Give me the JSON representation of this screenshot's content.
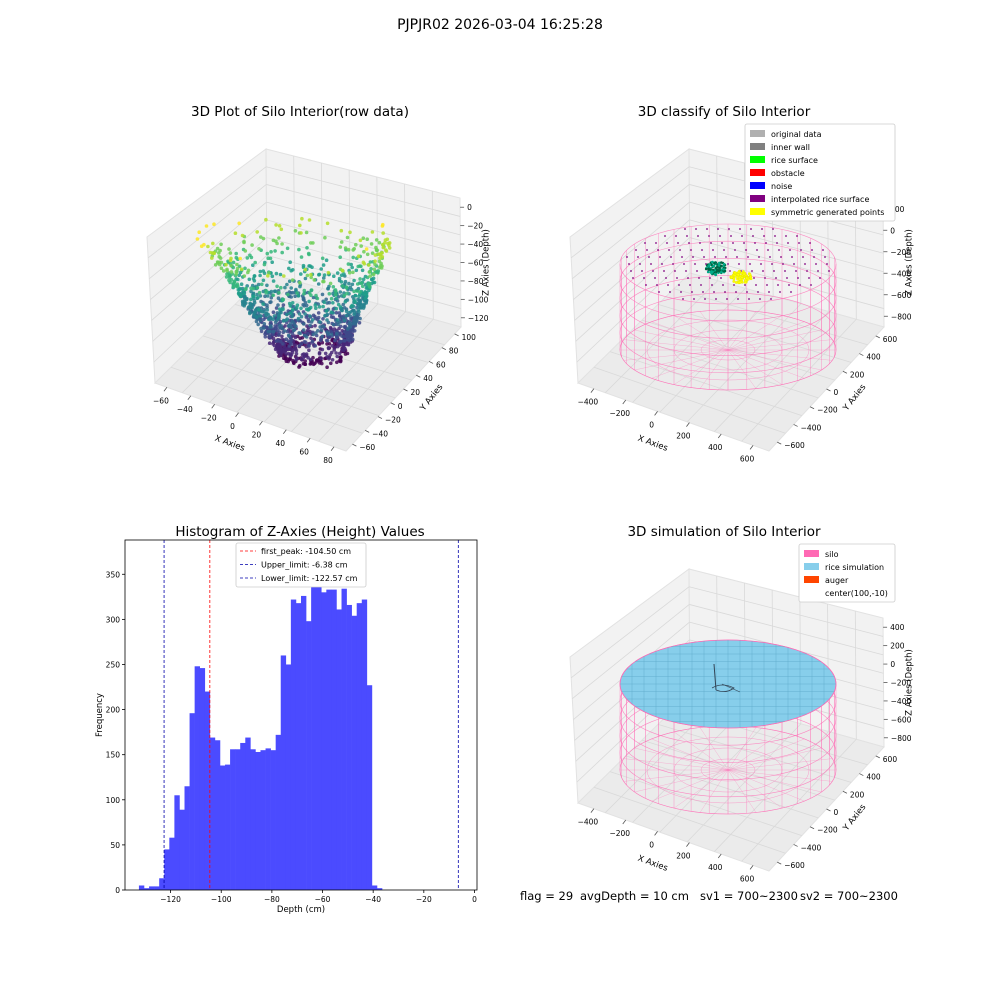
{
  "suptitle": "PJPJR02 2026-03-04 16:25:28",
  "footer": {
    "flag": "flag = 29",
    "avg_depth": "avgDepth = 10 cm",
    "sv1": "sv1 = 700~2300",
    "sv2": "sv2 = 700~2300"
  },
  "colors": {
    "histogram_bar": "#4b4bff",
    "first_peak_line": "#ff0000",
    "limit_lines": "#0000aa",
    "silo": "#ff69b4",
    "rice_simulation": "#87ceeb",
    "auger": "#ff4500",
    "original_data": "#b0b0b0",
    "inner_wall": "#808080",
    "rice_surface": "#00ff00",
    "obstacle": "#ff0000",
    "noise": "#0000ff",
    "interpolated_rice_surface": "#800080",
    "symmetric_generated_points": "#ffff00"
  },
  "chart_data": [
    {
      "type": "scatter",
      "title": "3D Plot of Silo Interior(row data)",
      "xlabel": "X Axies",
      "ylabel": "Y Axies",
      "zlabel": "Z Axies (Depth)",
      "x_ticks": [
        "−60",
        "−40",
        "−20",
        "0",
        "20",
        "40",
        "60",
        "80"
      ],
      "y_ticks": [
        "−60",
        "−40",
        "−20",
        "0",
        "20",
        "40",
        "60",
        "80",
        "100"
      ],
      "z_ticks": [
        "0",
        "−20",
        "−40",
        "−60",
        "−80",
        "−100",
        "−120"
      ],
      "xlim": [
        -70,
        100
      ],
      "ylim": [
        -60,
        100
      ],
      "zlim": [
        -130,
        0
      ],
      "colormap": "viridis"
    },
    {
      "type": "scatter",
      "title": "3D classify of Silo Interior",
      "xlabel": "X Axies",
      "ylabel": "Y Axies",
      "zlabel": "Z Axies (Depth)",
      "x_ticks": [
        "−400",
        "−200",
        "0",
        "200",
        "400",
        "600"
      ],
      "y_ticks": [
        "−600",
        "−400",
        "−200",
        "0",
        "200",
        "400",
        "600"
      ],
      "z_ticks": [
        "200",
        "0",
        "−200",
        "−400",
        "−600",
        "−800"
      ],
      "legend_position": "top-right",
      "legend": [
        {
          "label": "original data",
          "color": "#b0b0b0"
        },
        {
          "label": "inner wall",
          "color": "#808080"
        },
        {
          "label": "rice surface",
          "color": "#00ff00"
        },
        {
          "label": "obstacle",
          "color": "#ff0000"
        },
        {
          "label": "noise",
          "color": "#0000ff"
        },
        {
          "label": "interpolated rice surface",
          "color": "#800080"
        },
        {
          "label": "symmetric generated points",
          "color": "#ffff00"
        }
      ]
    },
    {
      "type": "bar",
      "title": "Histogram of Z-Axies (Height) Values",
      "xlabel": "Depth (cm)",
      "ylabel": "Frequency",
      "xlim": [
        -138,
        1
      ],
      "ylim": [
        0,
        388
      ],
      "x_ticks": [
        -120,
        -100,
        -80,
        -60,
        -40,
        -20,
        0
      ],
      "y_ticks": [
        0,
        50,
        100,
        150,
        200,
        250,
        300,
        350
      ],
      "bin_start": -132.5,
      "bin_width": 2,
      "values": [
        5,
        2,
        4,
        4,
        13,
        45,
        58,
        105,
        89,
        115,
        196,
        248,
        246,
        220,
        169,
        166,
        138,
        139,
        156,
        156,
        163,
        169,
        156,
        153,
        155,
        157,
        155,
        172,
        260,
        250,
        322,
        318,
        326,
        298,
        370,
        343,
        330,
        333,
        333,
        311,
        334,
        316,
        304,
        318,
        322,
        227,
        5,
        2
      ],
      "vlines": [
        {
          "x": -104.5,
          "color": "#ff0000",
          "label": "first_peak: -104.50 cm"
        },
        {
          "x": -6.38,
          "color": "#0000aa",
          "label": "Upper_limit: -6.38 cm"
        },
        {
          "x": -122.57,
          "color": "#0000aa",
          "label": "Lower_limit: -122.57 cm"
        }
      ],
      "legend_position": "top-center"
    },
    {
      "type": "scatter",
      "title": "3D simulation of Silo Interior",
      "xlabel": "X Axies",
      "ylabel": "Y Axies",
      "zlabel": "Z Axies (Depth)",
      "x_ticks": [
        "−400",
        "−200",
        "0",
        "200",
        "400",
        "600"
      ],
      "y_ticks": [
        "−600",
        "−400",
        "−200",
        "0",
        "200",
        "400",
        "600"
      ],
      "z_ticks": [
        "400",
        "200",
        "0",
        "−200",
        "−400",
        "−600",
        "−800"
      ],
      "legend_position": "top-right",
      "legend": [
        {
          "label": "silo",
          "color": "#ff69b4"
        },
        {
          "label": "rice simulation",
          "color": "#87ceeb"
        },
        {
          "label": "auger",
          "color": "#ff4500"
        },
        {
          "label": "center(100,-10)",
          "color": ""
        }
      ]
    }
  ]
}
